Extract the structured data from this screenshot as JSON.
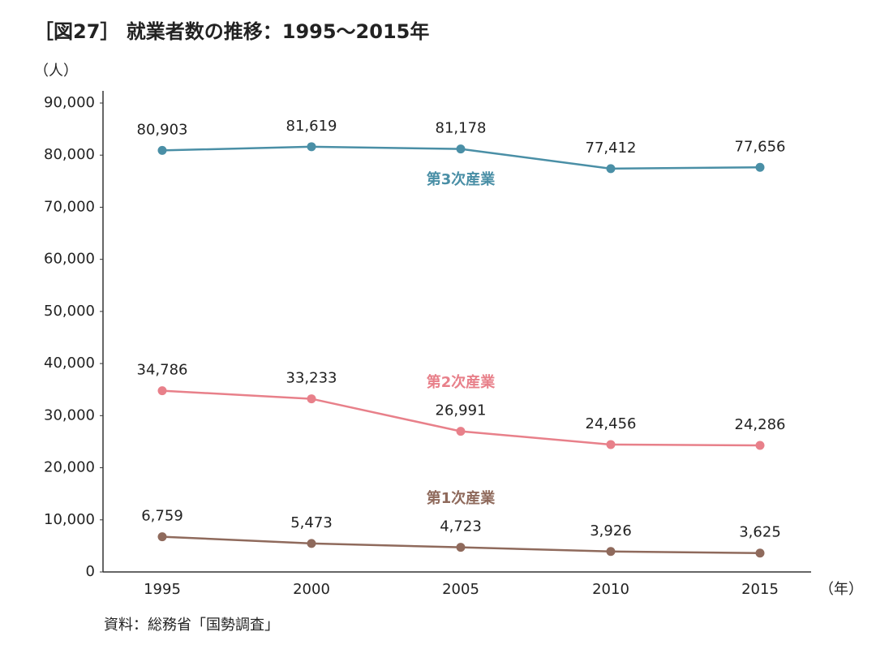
{
  "chart_data": {
    "type": "line",
    "title": "［図27］ 就業者数の推移：1995〜2015年",
    "y_label": "（人）",
    "x_label": "（年）",
    "source": "資料：総務省「国勢調査」",
    "categories": [
      "1995",
      "2000",
      "2005",
      "2010",
      "2015"
    ],
    "series": [
      {
        "name": "第3次産業",
        "color": "#4a8fa6",
        "values": [
          80903,
          81619,
          81178,
          77412,
          77656
        ],
        "value_labels": [
          "80,903",
          "81,619",
          "81,178",
          "77,412",
          "77,656"
        ]
      },
      {
        "name": "第2次産業",
        "color": "#e8808a",
        "values": [
          34786,
          33233,
          26991,
          24456,
          24286
        ],
        "value_labels": [
          "34,786",
          "33,233",
          "26,991",
          "24,456",
          "24,286"
        ]
      },
      {
        "name": "第1次産業",
        "color": "#8f6a5c",
        "values": [
          6759,
          5473,
          4723,
          3926,
          3625
        ],
        "value_labels": [
          "6,759",
          "5,473",
          "4,723",
          "3,926",
          "3,625"
        ]
      }
    ],
    "ylim": [
      0,
      90000
    ],
    "yticks": [
      0,
      {
        "value": 10000,
        "label": "10,000"
      },
      {
        "value": 20000,
        "label": "20,000"
      },
      {
        "value": 30000,
        "label": "30,000"
      },
      {
        "value": 40000,
        "label": "40,000"
      },
      {
        "value": 50000,
        "label": "50,000"
      },
      {
        "value": 60000,
        "label": "60,000"
      },
      {
        "value": 70000,
        "label": "70,000"
      },
      {
        "value": 80000,
        "label": "80,000"
      },
      {
        "value": 90000,
        "label": "90,000"
      }
    ],
    "grid": false
  }
}
